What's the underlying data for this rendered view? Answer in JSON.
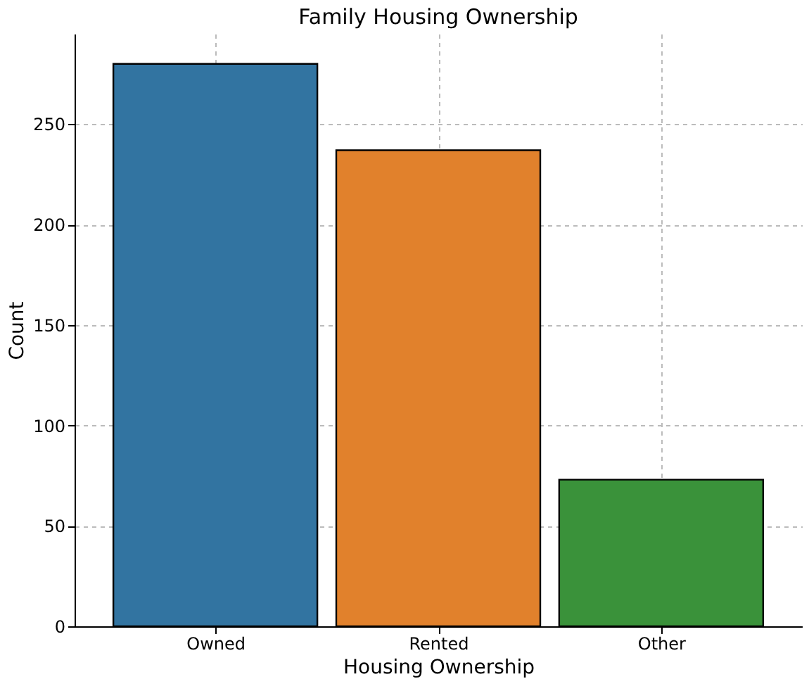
{
  "chart_data": {
    "type": "bar",
    "title": "Family Housing Ownership",
    "xlabel": "Housing Ownership",
    "ylabel": "Count",
    "categories": [
      "Owned",
      "Rented",
      "Other"
    ],
    "values": [
      280,
      237,
      73
    ],
    "colors": [
      "#3274a1",
      "#e1812c",
      "#3a923a"
    ],
    "ylim": [
      0,
      295
    ],
    "yticks": [
      0,
      50,
      100,
      150,
      200,
      250
    ],
    "grid": true
  }
}
